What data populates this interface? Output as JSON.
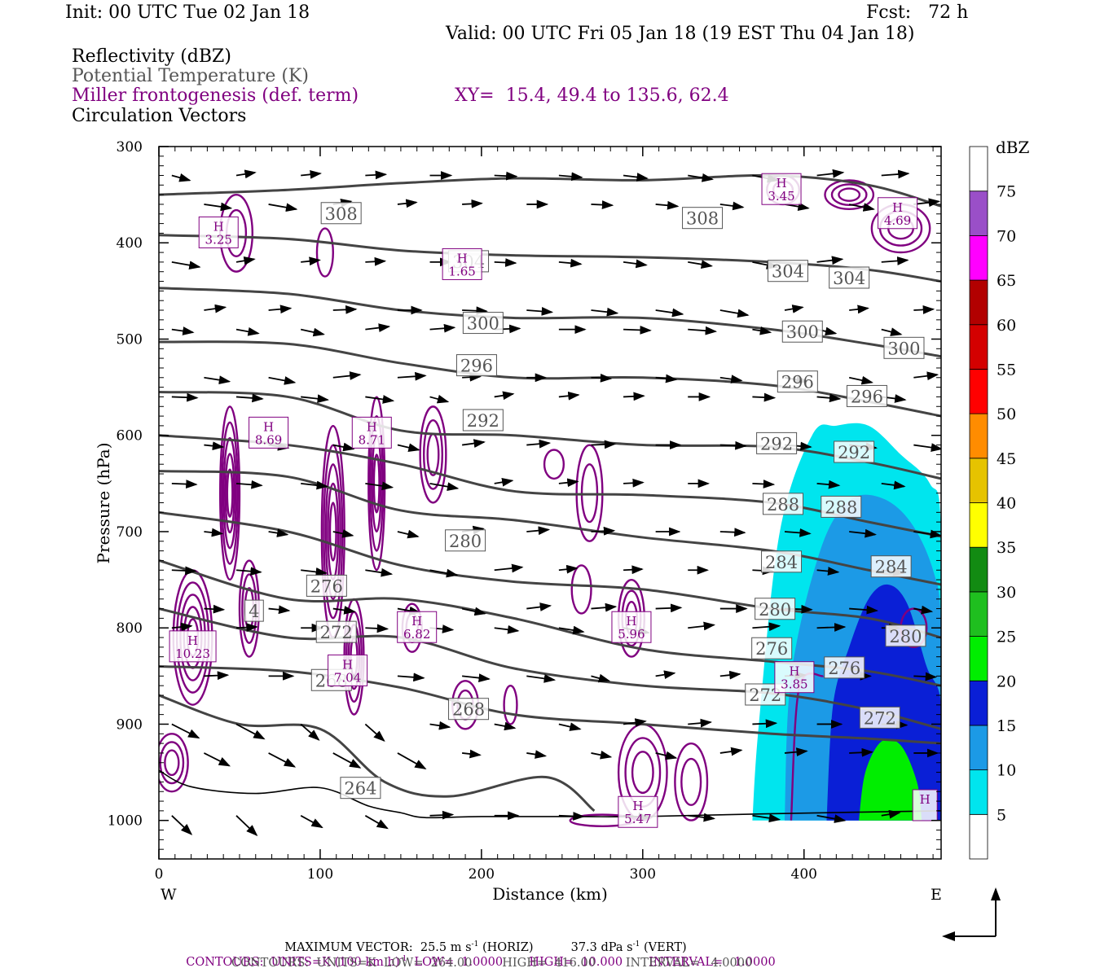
{
  "header": {
    "init": "Init: 00 UTC Tue 02 Jan 18",
    "fcst": "Fcst:   72 h",
    "valid": "Valid: 00 UTC Fri 05 Jan 18 (19 EST Thu 04 Jan 18)",
    "field1": "Reflectivity (dBZ)",
    "field2": "Potential Temperature (K)",
    "field3": "Miller frontogenesis (def. term)",
    "xy": "XY=  15.4, 49.4 to 135.6, 62.4",
    "field4": "Circulation Vectors"
  },
  "footer": {
    "max_vector_label": "MAXIMUM VECTOR:",
    "max_vector_horiz_value": "25.5 m s",
    "max_vector_horiz_exp": "-1",
    "max_vector_horiz_suffix": "(HORIZ)",
    "max_vector_vert_value": "37.3 dPa s",
    "max_vector_vert_exp": "-1",
    "max_vector_vert_suffix": "(VERT)",
    "contours1_a": "CONTOURS:  UNITS=K (100 km h)",
    "contours1_exp": "-1",
    "contours1_b": "  LOW=  1.0000       HIGH=  10.000       INTERVAL=   1.0000",
    "contours2": "CONTOURS:  UNITS=K  LOW=  264.00        HIGH=  416.00        INTERVAL=   4.0000"
  },
  "colors": {
    "theta": "#444444",
    "frontogenesis": "#800080",
    "vectors": "#000000",
    "dbz": [
      "#ffffff",
      "#00e5ee",
      "#1c9ae6",
      "#0a1fd6",
      "#00ee00",
      "#1fbf1f",
      "#128b12",
      "#ffff00",
      "#e6c300",
      "#ff8c00",
      "#ff0000",
      "#d40000",
      "#b20000",
      "#ff00ff",
      "#9a4fc8",
      "#ffffff"
    ]
  },
  "chart_data": {
    "type": "cross-section",
    "xlabel": "Distance (km)",
    "ylabel": "Pressure (hPa)",
    "xlim": [
      0,
      485
    ],
    "ylim": [
      1040,
      300
    ],
    "x_ticks": [
      0,
      100,
      200,
      300,
      400
    ],
    "y_ticks": [
      300,
      400,
      500,
      600,
      700,
      800,
      900,
      1000
    ],
    "x_end_labels": {
      "left": "W",
      "right": "E"
    },
    "theta_lines": [
      {
        "label": "308",
        "x": [
          0,
          80,
          150,
          220,
          300,
          380,
          440,
          485
        ],
        "p": [
          350,
          345,
          338,
          333,
          335,
          330,
          340,
          362
        ]
      },
      {
        "label": "304",
        "x": [
          0,
          80,
          150,
          220,
          300,
          380,
          440,
          485
        ],
        "p": [
          392,
          396,
          408,
          413,
          415,
          420,
          428,
          440
        ]
      },
      {
        "label": "300",
        "x": [
          0,
          80,
          150,
          220,
          300,
          380,
          440,
          485
        ],
        "p": [
          447,
          453,
          470,
          478,
          478,
          490,
          505,
          518
        ]
      },
      {
        "label": "296",
        "x": [
          0,
          80,
          150,
          220,
          300,
          380,
          440,
          485
        ],
        "p": [
          503,
          505,
          525,
          540,
          540,
          548,
          565,
          580
        ]
      },
      {
        "label": "292",
        "x": [
          0,
          80,
          150,
          220,
          300,
          380,
          440,
          485
        ],
        "p": [
          555,
          560,
          595,
          600,
          610,
          612,
          628,
          645
        ]
      },
      {
        "label": "288",
        "x": [
          0,
          80,
          150,
          220,
          300,
          380,
          440,
          485
        ],
        "p": [
          600,
          610,
          630,
          658,
          662,
          670,
          690,
          705
        ]
      },
      {
        "label": "284",
        "x": [
          0,
          80,
          150,
          220,
          300,
          380,
          440,
          485
        ],
        "p": [
          637,
          643,
          678,
          688,
          706,
          720,
          740,
          755
        ]
      },
      {
        "label": "280",
        "x": [
          0,
          80,
          150,
          220,
          300,
          380,
          440,
          485
        ],
        "p": [
          680,
          700,
          735,
          752,
          760,
          780,
          790,
          810
        ]
      },
      {
        "label": "276",
        "x": [
          0,
          80,
          150,
          220,
          300,
          380,
          440,
          485
        ],
        "p": [
          730,
          770,
          770,
          790,
          822,
          835,
          845,
          860
        ]
      },
      {
        "label": "272",
        "x": [
          0,
          80,
          150,
          220,
          300,
          380,
          440,
          485
        ],
        "p": [
          780,
          810,
          810,
          842,
          860,
          868,
          885,
          905
        ]
      },
      {
        "label": "268",
        "x": [
          0,
          80,
          150,
          220,
          300,
          380,
          440,
          485
        ],
        "p": [
          840,
          845,
          862,
          890,
          900,
          910,
          915,
          920
        ]
      },
      {
        "label": "264",
        "x": [
          0,
          50,
          100,
          140,
          180,
          240,
          270
        ],
        "p": [
          870,
          900,
          905,
          960,
          975,
          955,
          990
        ]
      }
    ],
    "theta_labels": [
      {
        "text": "308",
        "x": 113,
        "p": 370
      },
      {
        "text": "308",
        "x": 337,
        "p": 375
      },
      {
        "text": "304",
        "x": 192,
        "p": 420
      },
      {
        "text": "304",
        "x": 390,
        "p": 430
      },
      {
        "text": "304",
        "x": 428,
        "p": 437
      },
      {
        "text": "300",
        "x": 201,
        "p": 484
      },
      {
        "text": "300",
        "x": 399,
        "p": 493
      },
      {
        "text": "300",
        "x": 462,
        "p": 510
      },
      {
        "text": "296",
        "x": 197,
        "p": 528
      },
      {
        "text": "296",
        "x": 396,
        "p": 545
      },
      {
        "text": "296",
        "x": 439,
        "p": 560
      },
      {
        "text": "292",
        "x": 201,
        "p": 585
      },
      {
        "text": "292",
        "x": 383,
        "p": 609
      },
      {
        "text": "292",
        "x": 431,
        "p": 618
      },
      {
        "text": "288",
        "x": 387,
        "p": 672
      },
      {
        "text": "288",
        "x": 423,
        "p": 675
      },
      {
        "text": "284",
        "x": 386,
        "p": 732
      },
      {
        "text": "284",
        "x": 454,
        "p": 737
      },
      {
        "text": "280",
        "x": 190,
        "p": 710
      },
      {
        "text": "280",
        "x": 382,
        "p": 781
      },
      {
        "text": "280",
        "x": 463,
        "p": 809
      },
      {
        "text": "276",
        "x": 104,
        "p": 757
      },
      {
        "text": "276",
        "x": 380,
        "p": 822
      },
      {
        "text": "276",
        "x": 425,
        "p": 842
      },
      {
        "text": "272",
        "x": 110,
        "p": 805
      },
      {
        "text": "272",
        "x": 376,
        "p": 870
      },
      {
        "text": "272",
        "x": 447,
        "p": 894
      },
      {
        "text": "268",
        "x": 107,
        "p": 855
      },
      {
        "text": "268",
        "x": 192,
        "p": 885
      },
      {
        "text": "264",
        "x": 125,
        "p": 967
      },
      {
        "text": "4",
        "x": 59,
        "p": 783
      }
    ],
    "frontogenesis_maxima": [
      {
        "label": "H",
        "value": "3.25",
        "x": 37,
        "p": 390
      },
      {
        "label": "H",
        "value": "1.65",
        "x": 188,
        "p": 423
      },
      {
        "label": "H",
        "value": "3.45",
        "x": 386,
        "p": 345
      },
      {
        "label": "H",
        "value": "4.69",
        "x": 458,
        "p": 370
      },
      {
        "label": "H",
        "value": "8.69",
        "x": 68,
        "p": 598
      },
      {
        "label": "H",
        "value": "8.71",
        "x": 132,
        "p": 598
      },
      {
        "label": "H",
        "value": "10.23",
        "x": 21,
        "p": 820
      },
      {
        "label": "H",
        "value": "6.82",
        "x": 160,
        "p": 800
      },
      {
        "label": "H",
        "value": "7.04",
        "x": 117,
        "p": 845
      },
      {
        "label": "H",
        "value": "5.96",
        "x": 293,
        "p": 800
      },
      {
        "label": "H",
        "value": "3.85",
        "x": 394,
        "p": 852
      },
      {
        "label": "H",
        "value": "5.47",
        "x": 297,
        "p": 992
      },
      {
        "label": "H",
        "value": "",
        "x": 475,
        "p": 985
      }
    ],
    "reflectivity_scale": {
      "label": "dBZ",
      "values": [
        "5",
        "10",
        "15",
        "20",
        "25",
        "30",
        "35",
        "40",
        "45",
        "50",
        "55",
        "60",
        "65",
        "70",
        "75"
      ]
    }
  }
}
